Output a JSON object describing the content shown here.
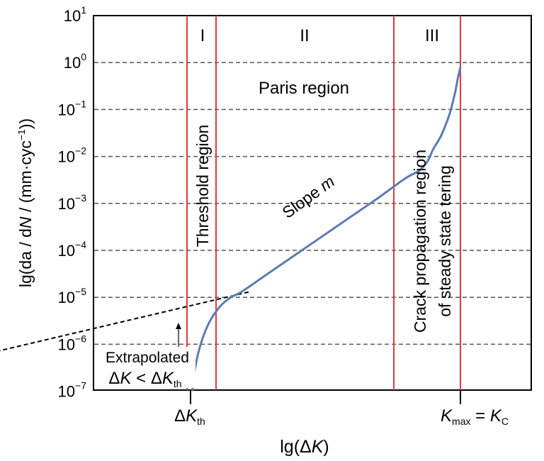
{
  "chart_data": {
    "type": "line",
    "ylabel": {
      "pre": "lg(da / d",
      "var": "N",
      "mid": " / (mm·cyc",
      "sup": "−1",
      "post": "))"
    },
    "xlabel": {
      "pre": "lg(Δ",
      "var": "K",
      "post": ")"
    },
    "yscale": "log",
    "ylim": [
      1e-07,
      10
    ],
    "y_ticks": [
      {
        "base": "10",
        "exp": "1"
      },
      {
        "base": "10",
        "exp": "0"
      },
      {
        "base": "10",
        "exp": "−1"
      },
      {
        "base": "10",
        "exp": "−2"
      },
      {
        "base": "10",
        "exp": "−3"
      },
      {
        "base": "10",
        "exp": "−4"
      },
      {
        "base": "10",
        "exp": "−5"
      },
      {
        "base": "10",
        "exp": "−6"
      },
      {
        "base": "10",
        "exp": "−7"
      }
    ],
    "grid": "horizontal dashed at each decade",
    "x_ticks": {
      "kth": {
        "delta": "Δ",
        "var": "K",
        "sub": "th"
      },
      "kmax": {
        "var": "K",
        "sub": "max",
        "eq": " = ",
        "var2": "K",
        "sub2": "C"
      }
    },
    "regions": [
      {
        "name": "I",
        "label": "Threshold region"
      },
      {
        "name": "II",
        "label": "Paris region"
      },
      {
        "name": "III",
        "label_line1": "Crack propagation region",
        "label_line2": "of steady state tering"
      }
    ],
    "slope_label": {
      "text": "Slope ",
      "var": "m"
    },
    "annotation": {
      "line1": "Extrapolated",
      "line2": {
        "d1": "Δ",
        "v1": "K",
        "lt": " < ",
        "d2": "Δ",
        "v2": "K",
        "sub": "th"
      }
    },
    "series": [
      {
        "style": "solid",
        "color": "#5b7bb4",
        "x": [
          0.02,
          0.03,
          0.05,
          0.08,
          0.12,
          0.16,
          0.2,
          0.3,
          0.4,
          0.5,
          0.6,
          0.7,
          0.8,
          0.85,
          0.88,
          0.9,
          0.93,
          0.96,
          0.98,
          0.99,
          1.0
        ],
        "log_y": [
          -7.0,
          -6.5,
          -6.0,
          -5.55,
          -5.2,
          -5.0,
          -4.88,
          -4.48,
          -4.08,
          -3.68,
          -3.28,
          -2.88,
          -2.46,
          -2.3,
          -2.1,
          -1.85,
          -1.55,
          -1.1,
          -0.65,
          -0.35,
          -0.1
        ]
      },
      {
        "style": "dashed",
        "color": "#000000",
        "x": [
          -0.95,
          0.23
        ],
        "log_y": [
          -6.5,
          -4.88
        ]
      }
    ],
    "colors": {
      "curve": "#5b7bb4",
      "boundary": "#e03a3a",
      "grid": "#555555"
    }
  }
}
